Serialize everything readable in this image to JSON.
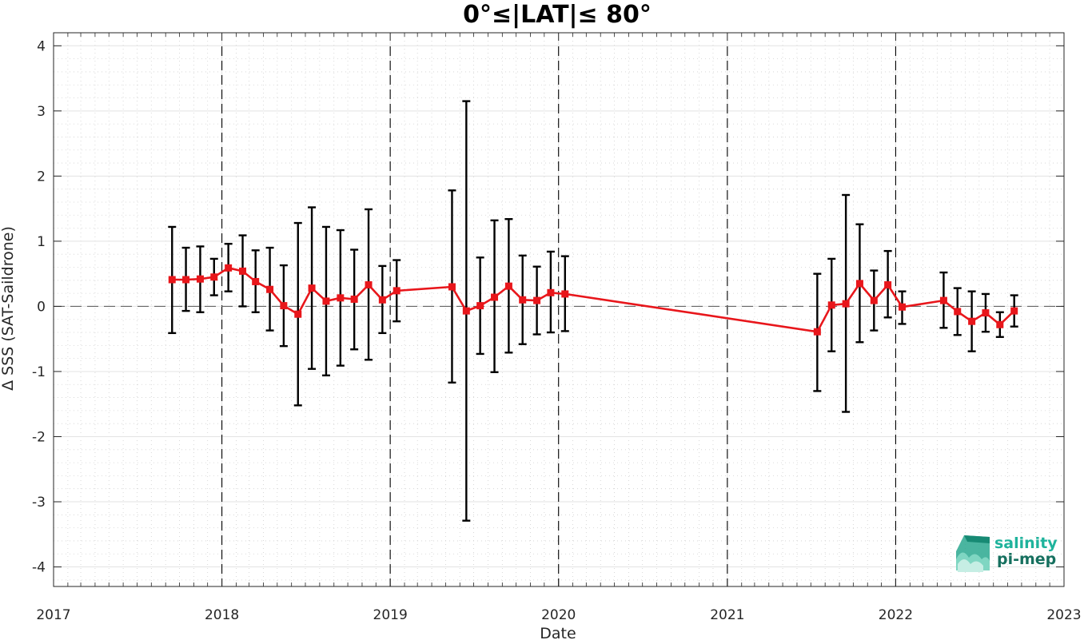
{
  "chart_data": {
    "type": "line",
    "title": "0°≤|LAT|≤ 80°",
    "xlabel": "Date",
    "ylabel": "Δ SSS (SAT-Saildrone)",
    "xlim": [
      "2017-01-01",
      "2023-01-01"
    ],
    "ylim": [
      -4.3,
      4.2
    ],
    "x_ticks": [
      "2017",
      "2018",
      "2019",
      "2020",
      "2021",
      "2022",
      "2023"
    ],
    "y_ticks": [
      -4,
      -3,
      -2,
      -1,
      0,
      1,
      2,
      3,
      4
    ],
    "grid": true,
    "minor_grid": true,
    "year_separators": [
      "2018-01-01",
      "2019-01-01",
      "2020-01-01",
      "2021-01-01",
      "2022-01-01"
    ],
    "reference_line": 0,
    "series_color": "#e8161b",
    "errorbar_color": "#000000",
    "series": [
      {
        "x": [
          "2017-09-15",
          "2017-10-15",
          "2017-11-15",
          "2017-12-15",
          "2018-01-15",
          "2018-02-15",
          "2018-03-15",
          "2018-04-15",
          "2018-05-15",
          "2018-06-15",
          "2018-07-15",
          "2018-08-15",
          "2018-09-15",
          "2018-10-15",
          "2018-11-15",
          "2018-12-15",
          "2019-01-15",
          "2019-05-15",
          "2019-06-15",
          "2019-07-15",
          "2019-08-15",
          "2019-09-15",
          "2019-10-15",
          "2019-11-15",
          "2019-12-15",
          "2020-01-15",
          "2021-07-15",
          "2021-08-15",
          "2021-09-15",
          "2021-10-15",
          "2021-11-15",
          "2021-12-15",
          "2022-01-15",
          "2022-04-15",
          "2022-05-15",
          "2022-06-15",
          "2022-07-15",
          "2022-08-15",
          "2022-09-15"
        ],
        "y": [
          0.41,
          0.41,
          0.42,
          0.45,
          0.59,
          0.54,
          0.38,
          0.26,
          0.01,
          -0.12,
          0.28,
          0.08,
          0.13,
          0.11,
          0.33,
          0.1,
          0.24,
          0.3,
          -0.07,
          0.01,
          0.14,
          0.31,
          0.1,
          0.09,
          0.21,
          0.19,
          -0.39,
          0.02,
          0.04,
          0.35,
          0.09,
          0.33,
          -0.01,
          0.09,
          -0.08,
          -0.23,
          -0.1,
          -0.28,
          -0.07
        ],
        "y_low": [
          -0.41,
          -0.07,
          -0.09,
          0.17,
          0.23,
          0.0,
          -0.09,
          -0.37,
          -0.61,
          -1.52,
          -0.96,
          -1.06,
          -0.91,
          -0.66,
          -0.82,
          -0.41,
          -0.23,
          -1.17,
          -3.29,
          -0.73,
          -1.01,
          -0.71,
          -0.58,
          -0.43,
          -0.4,
          -0.38,
          -1.3,
          -0.69,
          -1.62,
          -0.55,
          -0.37,
          -0.17,
          -0.27,
          -0.33,
          -0.44,
          -0.69,
          -0.39,
          -0.47,
          -0.31
        ],
        "y_high": [
          1.22,
          0.9,
          0.92,
          0.73,
          0.96,
          1.09,
          0.86,
          0.9,
          0.63,
          1.28,
          1.52,
          1.22,
          1.17,
          0.87,
          1.49,
          0.62,
          0.71,
          1.78,
          3.15,
          0.75,
          1.32,
          1.34,
          0.78,
          0.61,
          0.84,
          0.77,
          0.5,
          0.73,
          1.71,
          1.26,
          0.55,
          0.85,
          0.23,
          0.52,
          0.28,
          0.23,
          0.19,
          -0.09,
          0.17
        ]
      }
    ]
  },
  "logo": {
    "line1": "salinity",
    "line2": "pi-mep",
    "color1": "#1fb39c",
    "color2": "#16705f"
  }
}
